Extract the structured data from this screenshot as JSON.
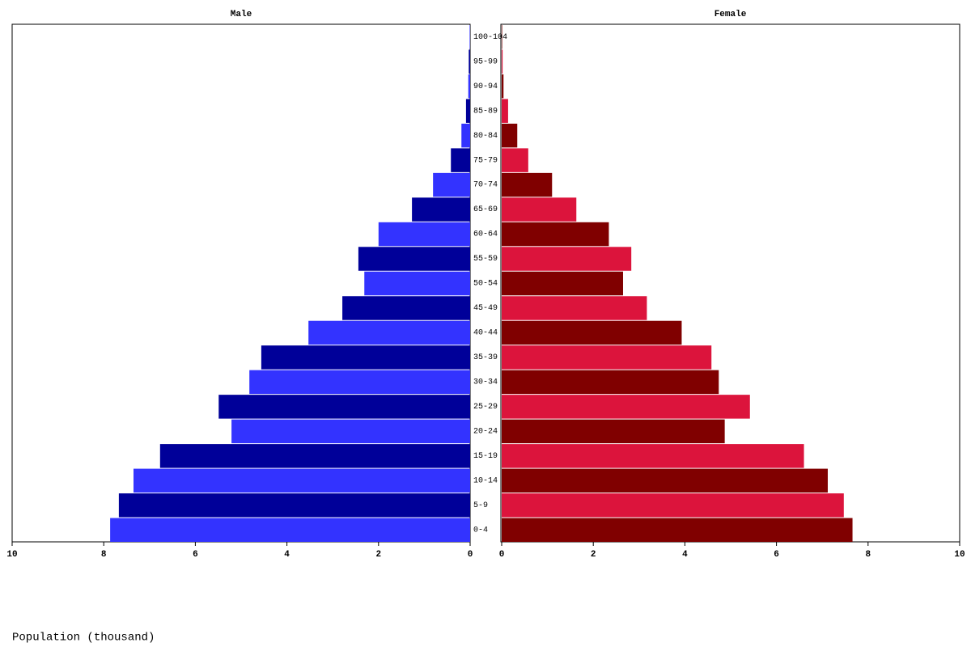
{
  "chart_data": {
    "type": "population-pyramid",
    "xlabel": "Population (thousand)",
    "categories": [
      "0-4",
      "5-9",
      "10-14",
      "15-19",
      "20-24",
      "25-29",
      "30-34",
      "35-39",
      "40-44",
      "45-49",
      "50-54",
      "55-59",
      "60-64",
      "65-69",
      "70-74",
      "75-79",
      "80-84",
      "85-89",
      "90-94",
      "95-99",
      "100-104"
    ],
    "series": [
      {
        "name": "Male",
        "colors": [
          "#3333ff",
          "#000099"
        ],
        "values": [
          7.86,
          7.67,
          7.35,
          6.77,
          5.21,
          5.49,
          4.82,
          4.56,
          3.53,
          2.79,
          2.31,
          2.44,
          2.0,
          1.27,
          0.81,
          0.42,
          0.19,
          0.09,
          0.04,
          0.03,
          0.01
        ]
      },
      {
        "name": "Female",
        "colors": [
          "#800000",
          "#dc143c"
        ],
        "values": [
          7.66,
          7.47,
          7.12,
          6.6,
          4.87,
          5.42,
          4.74,
          4.58,
          3.93,
          3.17,
          2.65,
          2.83,
          2.34,
          1.63,
          1.1,
          0.58,
          0.34,
          0.14,
          0.04,
          0.02,
          0.01
        ]
      }
    ],
    "xlim": [
      0,
      10
    ],
    "xticks": [
      0,
      2,
      4,
      6,
      8,
      10
    ]
  }
}
